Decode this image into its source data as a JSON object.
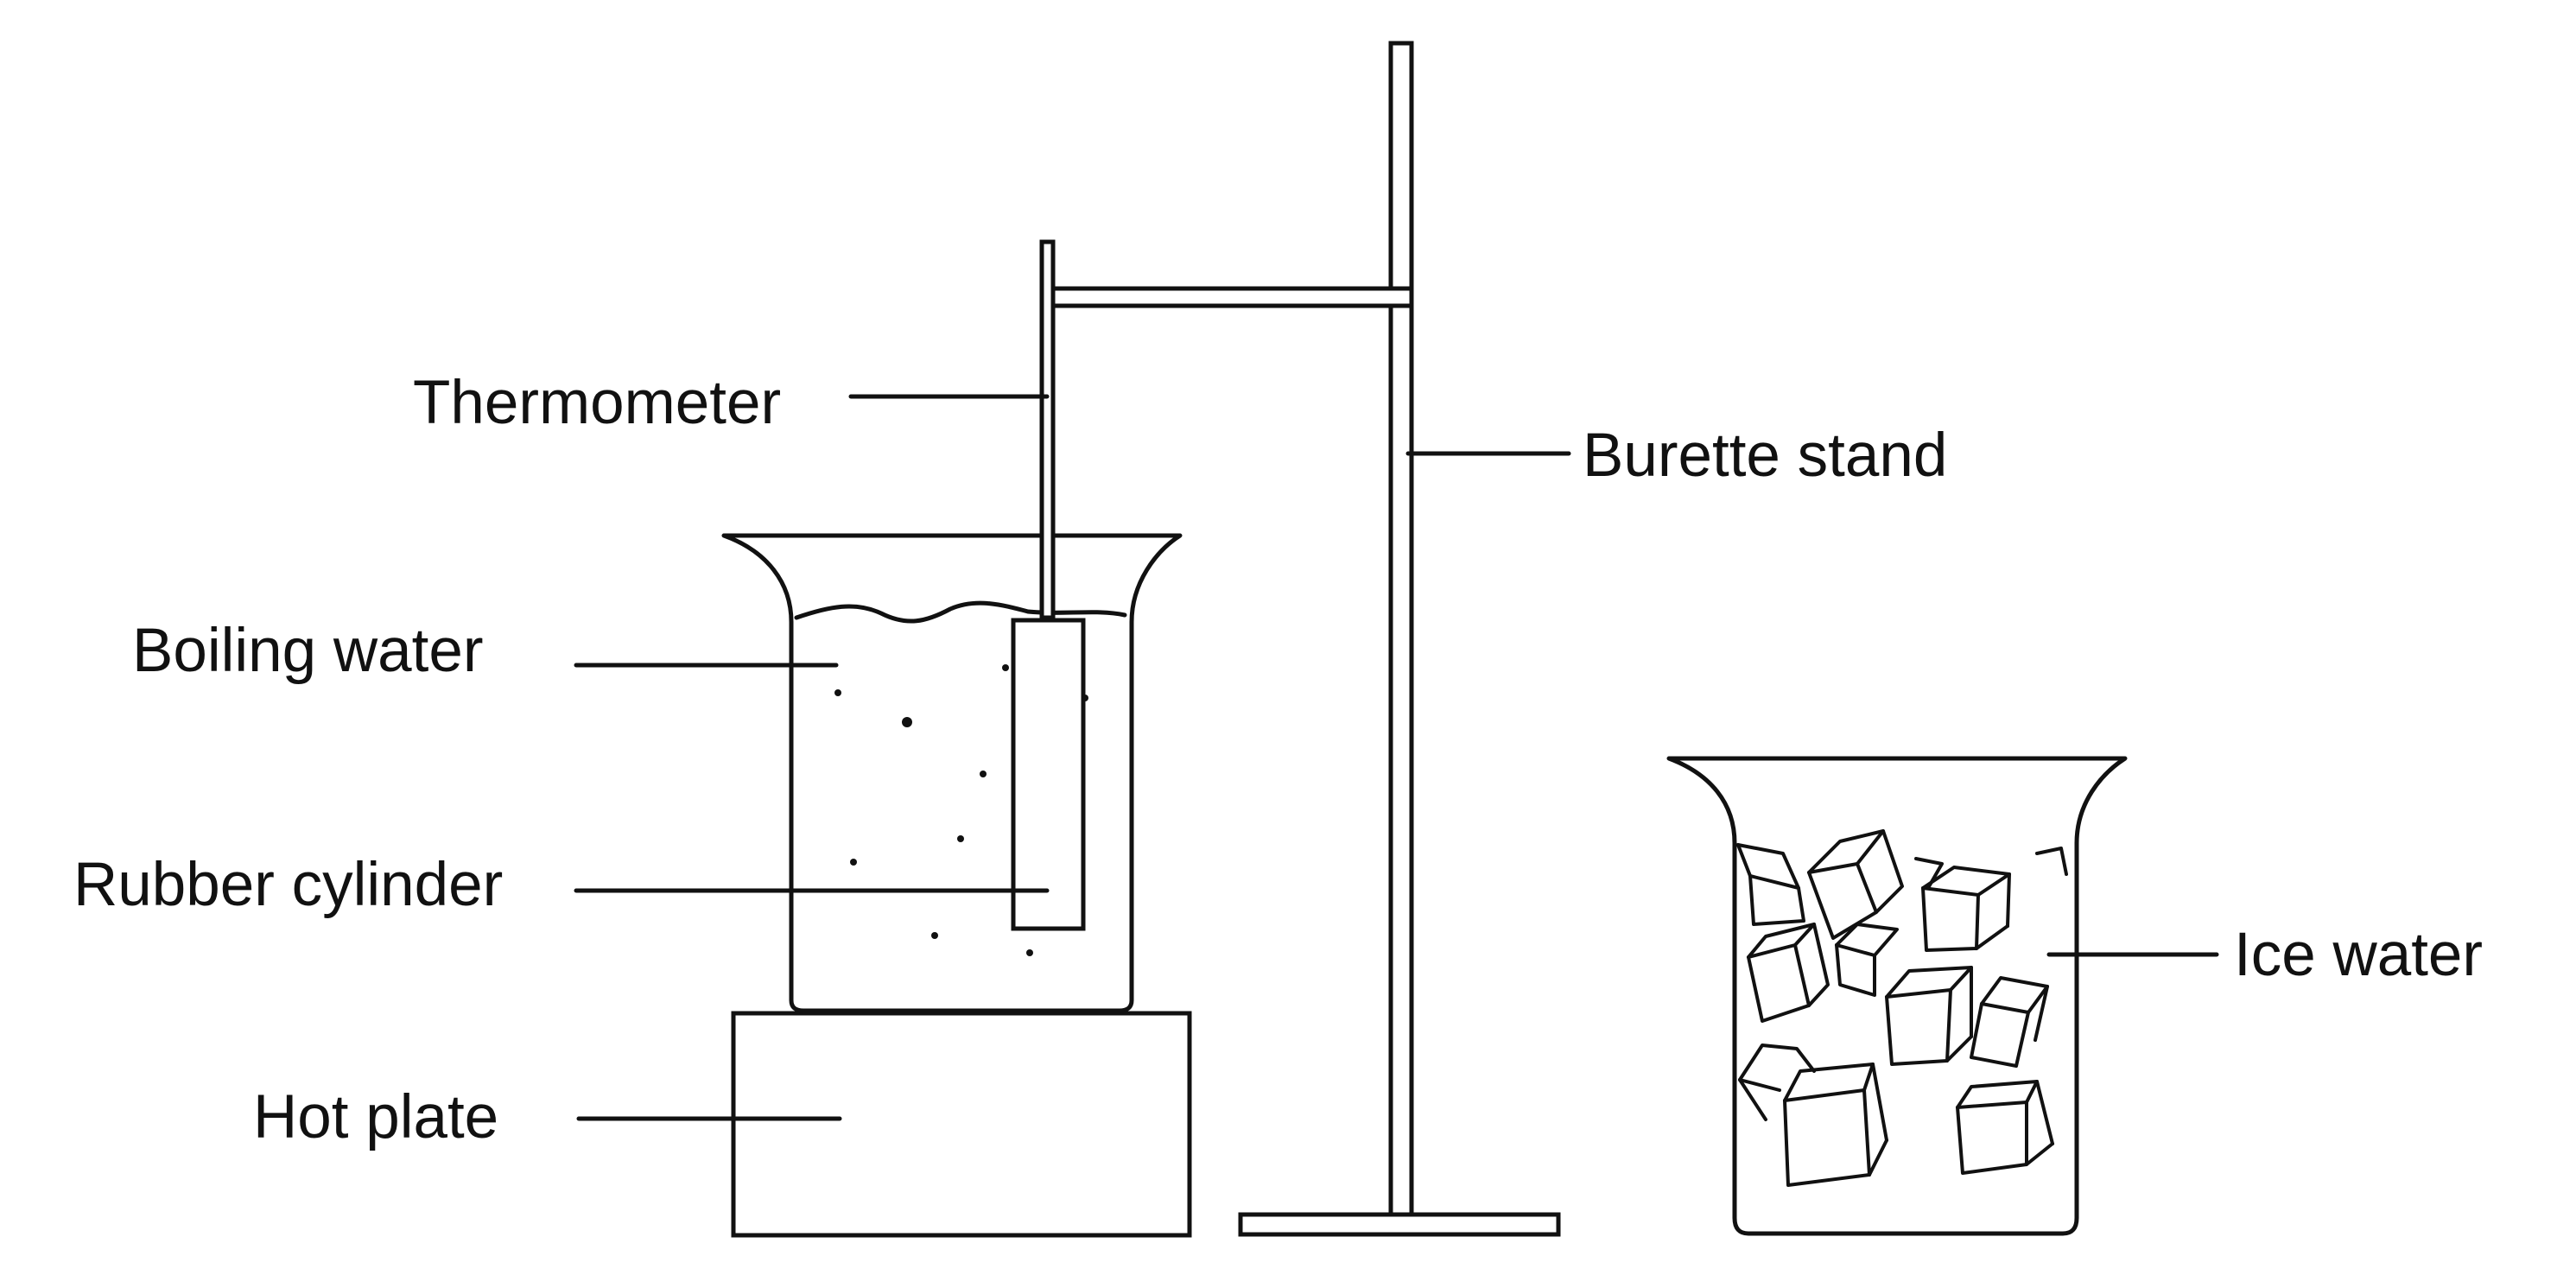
{
  "labels": {
    "thermometer": "Thermometer",
    "burette_stand": "Burette stand",
    "boiling_water": "Boiling water",
    "rubber_cylinder": "Rubber cylinder",
    "hot_plate": "Hot plate",
    "ice_water": "Ice water"
  },
  "colors": {
    "ink": "#111111",
    "background": "#ffffff"
  }
}
